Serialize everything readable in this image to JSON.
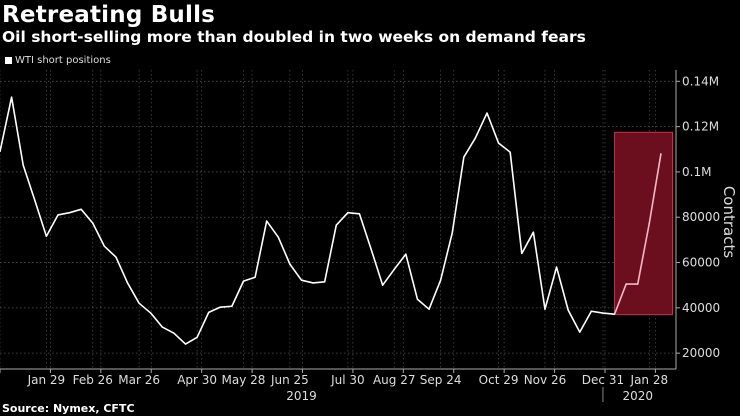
{
  "header": {
    "title": "Retreating Bulls",
    "subtitle": "Oil short-selling more than doubled in two weeks on demand fears"
  },
  "footer": {
    "source": "Source: Nymex, CFTC"
  },
  "chart_data": {
    "type": "line",
    "title": "Retreating Bulls",
    "subtitle": "Oil short-selling more than doubled in two weeks on demand fears",
    "xlabel": "",
    "ylabel": "Contracts",
    "legend": {
      "placement": "top-left",
      "entries": [
        "WTI short positions"
      ]
    },
    "series": [
      {
        "name": "WTI short positions",
        "color": "#ffffff",
        "x_index": [
          0,
          1,
          2,
          3,
          4,
          5,
          6,
          7,
          8,
          9,
          10,
          11,
          12,
          13,
          14,
          15,
          16,
          17,
          18,
          19,
          20,
          21,
          22,
          23,
          24,
          25,
          26,
          27,
          28,
          29,
          30,
          31,
          32,
          33,
          34,
          35,
          36,
          37,
          38,
          39,
          40,
          41,
          42,
          43,
          44,
          45,
          46,
          47,
          48,
          49,
          50,
          51,
          52,
          53,
          54,
          55,
          56,
          57
        ],
        "values": [
          109000,
          133000,
          103000,
          87500,
          71600,
          81000,
          82000,
          83500,
          77400,
          67200,
          62400,
          51000,
          42000,
          37700,
          31500,
          28800,
          24000,
          27000,
          38000,
          40300,
          40700,
          51800,
          53500,
          78300,
          71200,
          59300,
          52200,
          51000,
          51500,
          76500,
          82000,
          81500,
          66000,
          50000,
          57000,
          63700,
          43800,
          39400,
          52200,
          73000,
          106500,
          115000,
          126000,
          112700,
          108700,
          64000,
          73400,
          39400,
          58000,
          39000,
          29300,
          38500,
          37700,
          37200,
          50500,
          50500,
          77400,
          108000
        ]
      }
    ],
    "x_ticks": [
      {
        "label": "Jan 29",
        "index": 4
      },
      {
        "label": "Feb 26",
        "index": 8
      },
      {
        "label": "Mar 26",
        "index": 12
      },
      {
        "label": "Apr 30",
        "index": 17
      },
      {
        "label": "May 28",
        "index": 21
      },
      {
        "label": "Jun 25",
        "index": 25
      },
      {
        "label": "Jul 30",
        "index": 30
      },
      {
        "label": "Aug 27",
        "index": 34
      },
      {
        "label": "Sep 24",
        "index": 38
      },
      {
        "label": "Oct 29",
        "index": 43
      },
      {
        "label": "Nov 26",
        "index": 47
      },
      {
        "label": "Dec 31",
        "index": 52
      },
      {
        "label": "Jan 28",
        "index": 56
      }
    ],
    "year_labels": [
      {
        "label": "2019",
        "index": 26
      },
      {
        "label": "2020",
        "index": 55
      }
    ],
    "year_separator_index": 52,
    "y_ticks": [
      {
        "label": "20000",
        "value": 20000
      },
      {
        "label": "40000",
        "value": 40000
      },
      {
        "label": "60000",
        "value": 60000
      },
      {
        "label": "80000",
        "value": 80000
      },
      {
        "label": "0.1M",
        "value": 100000
      },
      {
        "label": "0.12M",
        "value": 120000
      },
      {
        "label": "0.14M",
        "value": 140000
      }
    ],
    "xlim": [
      0,
      58.3
    ],
    "ylim": [
      13000,
      145000
    ],
    "grid": true,
    "highlight": {
      "x_from": 53,
      "x_to": 58,
      "y_from": 37000,
      "y_to": 117500,
      "color": "#6b0f1f",
      "border": "#c8314a",
      "line_color": "#f4b8c4"
    }
  }
}
